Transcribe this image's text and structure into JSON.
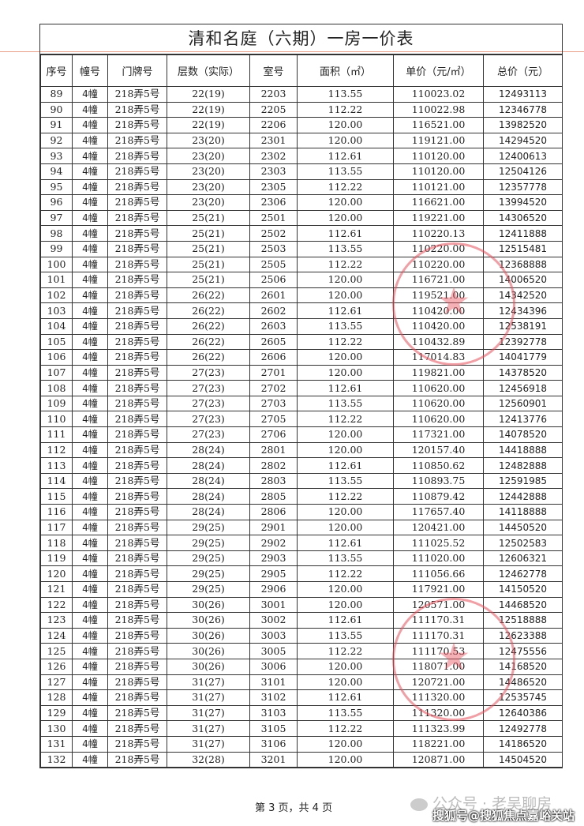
{
  "document": {
    "title": "清和名庭（六期）一房一价表",
    "headers": [
      "序号",
      "幢号",
      "门牌号",
      "层数（实际）",
      "室号",
      "面积（㎡）",
      "单价（元/㎡）",
      "总价（元）"
    ],
    "rows": [
      [
        "89",
        "4幢",
        "218弄5号",
        "22(19)",
        "2203",
        "113.55",
        "110023.02",
        "12493113"
      ],
      [
        "90",
        "4幢",
        "218弄5号",
        "22(19)",
        "2205",
        "112.22",
        "110022.98",
        "12346778"
      ],
      [
        "91",
        "4幢",
        "218弄5号",
        "22(19)",
        "2206",
        "120.00",
        "116521.00",
        "13982520"
      ],
      [
        "92",
        "4幢",
        "218弄5号",
        "23(20)",
        "2301",
        "120.00",
        "119121.00",
        "14294520"
      ],
      [
        "93",
        "4幢",
        "218弄5号",
        "23(20)",
        "2302",
        "112.61",
        "110120.00",
        "12400613"
      ],
      [
        "94",
        "4幢",
        "218弄5号",
        "23(20)",
        "2303",
        "113.55",
        "110120.00",
        "12504126"
      ],
      [
        "95",
        "4幢",
        "218弄5号",
        "23(20)",
        "2305",
        "112.22",
        "110121.00",
        "12357778"
      ],
      [
        "96",
        "4幢",
        "218弄5号",
        "23(20)",
        "2306",
        "120.00",
        "116621.00",
        "13994520"
      ],
      [
        "97",
        "4幢",
        "218弄5号",
        "25(21)",
        "2501",
        "120.00",
        "119221.00",
        "14306520"
      ],
      [
        "98",
        "4幢",
        "218弄5号",
        "25(21)",
        "2502",
        "112.61",
        "110220.13",
        "12411888"
      ],
      [
        "99",
        "4幢",
        "218弄5号",
        "25(21)",
        "2503",
        "113.55",
        "110220.00",
        "12515481"
      ],
      [
        "100",
        "4幢",
        "218弄5号",
        "25(21)",
        "2505",
        "112.22",
        "110220.00",
        "12368888"
      ],
      [
        "101",
        "4幢",
        "218弄5号",
        "25(21)",
        "2506",
        "120.00",
        "116721.00",
        "14006520"
      ],
      [
        "102",
        "4幢",
        "218弄5号",
        "26(22)",
        "2601",
        "120.00",
        "119521.00",
        "14342520"
      ],
      [
        "103",
        "4幢",
        "218弄5号",
        "26(22)",
        "2602",
        "112.61",
        "110420.00",
        "12434396"
      ],
      [
        "104",
        "4幢",
        "218弄5号",
        "26(22)",
        "2603",
        "113.55",
        "110420.00",
        "12538191"
      ],
      [
        "105",
        "4幢",
        "218弄5号",
        "26(22)",
        "2605",
        "112.22",
        "110432.89",
        "12392778"
      ],
      [
        "106",
        "4幢",
        "218弄5号",
        "26(22)",
        "2606",
        "120.00",
        "117014.83",
        "14041779"
      ],
      [
        "107",
        "4幢",
        "218弄5号",
        "27(23)",
        "2701",
        "120.00",
        "119821.00",
        "14378520"
      ],
      [
        "108",
        "4幢",
        "218弄5号",
        "27(23)",
        "2702",
        "112.61",
        "110620.00",
        "12456918"
      ],
      [
        "109",
        "4幢",
        "218弄5号",
        "27(23)",
        "2703",
        "113.55",
        "110620.00",
        "12560901"
      ],
      [
        "110",
        "4幢",
        "218弄5号",
        "27(23)",
        "2705",
        "112.22",
        "110620.00",
        "12413776"
      ],
      [
        "111",
        "4幢",
        "218弄5号",
        "27(23)",
        "2706",
        "120.00",
        "117321.00",
        "14078520"
      ],
      [
        "112",
        "4幢",
        "218弄5号",
        "28(24)",
        "2801",
        "120.00",
        "120157.40",
        "14418888"
      ],
      [
        "113",
        "4幢",
        "218弄5号",
        "28(24)",
        "2802",
        "112.61",
        "110850.62",
        "12482888"
      ],
      [
        "114",
        "4幢",
        "218弄5号",
        "28(24)",
        "2803",
        "113.55",
        "110893.75",
        "12591985"
      ],
      [
        "115",
        "4幢",
        "218弄5号",
        "28(24)",
        "2805",
        "112.22",
        "110879.42",
        "12442888"
      ],
      [
        "116",
        "4幢",
        "218弄5号",
        "28(24)",
        "2806",
        "120.00",
        "117657.40",
        "14118888"
      ],
      [
        "117",
        "4幢",
        "218弄5号",
        "29(25)",
        "2901",
        "120.00",
        "120421.00",
        "14450520"
      ],
      [
        "118",
        "4幢",
        "218弄5号",
        "29(25)",
        "2902",
        "112.61",
        "111025.52",
        "12502583"
      ],
      [
        "119",
        "4幢",
        "218弄5号",
        "29(25)",
        "2903",
        "113.55",
        "111020.00",
        "12606321"
      ],
      [
        "120",
        "4幢",
        "218弄5号",
        "29(25)",
        "2905",
        "112.22",
        "111056.66",
        "12462778"
      ],
      [
        "121",
        "4幢",
        "218弄5号",
        "29(25)",
        "2906",
        "120.00",
        "117921.00",
        "14150520"
      ],
      [
        "122",
        "4幢",
        "218弄5号",
        "30(26)",
        "3001",
        "120.00",
        "120571.00",
        "14468520"
      ],
      [
        "123",
        "4幢",
        "218弄5号",
        "30(26)",
        "3002",
        "112.61",
        "111170.31",
        "12518888"
      ],
      [
        "124",
        "4幢",
        "218弄5号",
        "30(26)",
        "3003",
        "113.55",
        "111170.31",
        "12623388"
      ],
      [
        "125",
        "4幢",
        "218弄5号",
        "30(26)",
        "3005",
        "112.22",
        "111170.53",
        "12475556"
      ],
      [
        "126",
        "4幢",
        "218弄5号",
        "30(26)",
        "3006",
        "120.00",
        "118071.00",
        "14168520"
      ],
      [
        "127",
        "4幢",
        "218弄5号",
        "31(27)",
        "3101",
        "120.00",
        "120721.00",
        "14486520"
      ],
      [
        "128",
        "4幢",
        "218弄5号",
        "31(27)",
        "3102",
        "112.61",
        "111320.00",
        "12535745"
      ],
      [
        "129",
        "4幢",
        "218弄5号",
        "31(27)",
        "3103",
        "113.55",
        "111320.00",
        "12640386"
      ],
      [
        "130",
        "4幢",
        "218弄5号",
        "31(27)",
        "3105",
        "112.22",
        "111323.99",
        "12492778"
      ],
      [
        "131",
        "4幢",
        "218弄5号",
        "31(27)",
        "3106",
        "120.00",
        "118221.00",
        "14186520"
      ],
      [
        "132",
        "4幢",
        "218弄5号",
        "32(28)",
        "3201",
        "120.00",
        "120871.00",
        "14504520"
      ]
    ],
    "page_footer": "第 3 页，共 4 页"
  },
  "watermarks": {
    "wechat": "公众号 · 老吴聊房",
    "sohu": "搜狐号@搜狐焦点嘉峪关站"
  },
  "colors": {
    "stamp": "#e6505a",
    "border": "#333333"
  }
}
